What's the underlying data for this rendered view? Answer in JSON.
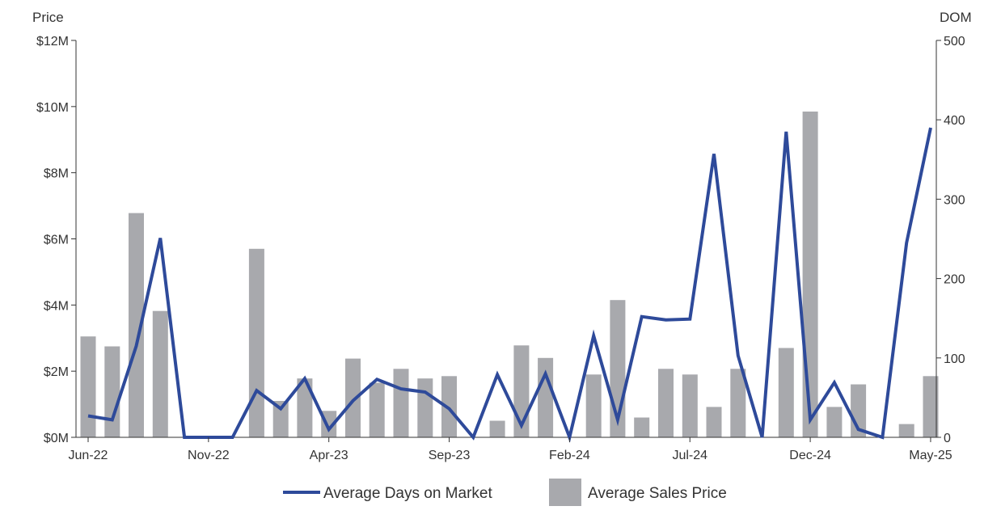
{
  "chart_data": {
    "type": "bar+line",
    "title": "",
    "ylabel_left": "Price",
    "ylabel_right": "DOM",
    "ylim_left": [
      0,
      12000000
    ],
    "ylim_right": [
      0,
      500
    ],
    "left_ticks": [
      "$0M",
      "$2M",
      "$4M",
      "$6M",
      "$8M",
      "$10M",
      "$12M"
    ],
    "right_ticks": [
      "0",
      "100",
      "200",
      "300",
      "400",
      "500"
    ],
    "x_tick_labels": [
      "Jun-22",
      "Nov-22",
      "Apr-23",
      "Sep-23",
      "Feb-24",
      "Jul-24",
      "Dec-24",
      "May-25"
    ],
    "categories": [
      "Jun-22",
      "Jul-22",
      "Aug-22",
      "Sep-22",
      "Oct-22",
      "Nov-22",
      "Dec-22",
      "Jan-23",
      "Feb-23",
      "Mar-23",
      "Apr-23",
      "May-23",
      "Jun-23",
      "Jul-23",
      "Aug-23",
      "Sep-23",
      "Oct-23",
      "Nov-23",
      "Dec-23",
      "Jan-24",
      "Feb-24",
      "Mar-24",
      "Apr-24",
      "May-24",
      "Jun-24",
      "Jul-24",
      "Aug-24",
      "Sep-24",
      "Oct-24",
      "Nov-24",
      "Dec-24",
      "Jan-25",
      "Feb-25",
      "Mar-25",
      "Apr-25",
      "May-25"
    ],
    "series": [
      {
        "name": "Average Sales Price",
        "kind": "bar",
        "axis": "left",
        "color": "#a8a9ad",
        "values": [
          3050000,
          2750000,
          6780000,
          3820000,
          null,
          null,
          null,
          5700000,
          1100000,
          1780000,
          800000,
          2380000,
          1650000,
          2070000,
          1780000,
          1850000,
          null,
          500000,
          2780000,
          2400000,
          null,
          1900000,
          4150000,
          600000,
          2070000,
          1900000,
          920000,
          2070000,
          null,
          2700000,
          9850000,
          920000,
          1600000,
          null,
          400000,
          1850000
        ]
      },
      {
        "name": "Average Days on Market",
        "kind": "line",
        "axis": "right",
        "color": "#2e4a9a",
        "values": [
          27,
          22,
          115,
          251,
          0,
          0,
          0,
          59,
          36,
          74,
          10,
          46,
          73,
          61,
          57,
          36,
          0,
          79,
          15,
          80,
          0,
          128,
          22,
          152,
          148,
          149,
          357,
          103,
          0,
          385,
          22,
          69,
          10,
          0,
          245,
          390
        ]
      }
    ],
    "legend": [
      {
        "label": "Average Days on Market",
        "color": "#2e4a9a"
      },
      {
        "label": "Average Sales Price",
        "color": "#a8a9ad"
      }
    ],
    "legend_position": "bottom",
    "grid": false
  }
}
